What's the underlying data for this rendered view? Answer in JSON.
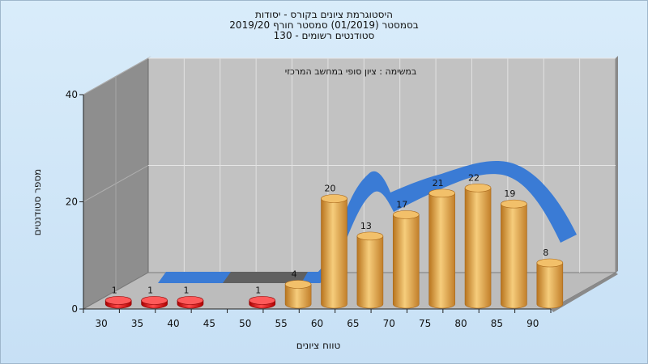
{
  "header": {
    "line1": "היסטוגרמת ציונים בקורס - יסודות",
    "line2": "בסמסטר  (01/2019)  סמסטר חורף 2019/20",
    "line3": "130 - סטודנטים רשומים"
  },
  "chart_data": {
    "type": "bar",
    "title": "היסטוגרמת ציונים בקורס - יסודות",
    "subtitle": "במשימה : ציון סופי במחשב המרכזי",
    "xlabel": "טווח ציונים",
    "ylabel": "מספר סטודנטים",
    "categories": [
      "30",
      "35",
      "40",
      "45",
      "50",
      "55",
      "60",
      "65",
      "70",
      "75",
      "80",
      "85",
      "90"
    ],
    "values": [
      1,
      1,
      1,
      0,
      1,
      4,
      20,
      13,
      17,
      21,
      22,
      19,
      8
    ],
    "ylim": [
      0,
      40
    ],
    "yticks": [
      0,
      20,
      40
    ],
    "bar_colors": {
      "failing": "#e01010",
      "passing": "#e8a840"
    },
    "curve_color": "#3a7bd5",
    "grid": true
  }
}
